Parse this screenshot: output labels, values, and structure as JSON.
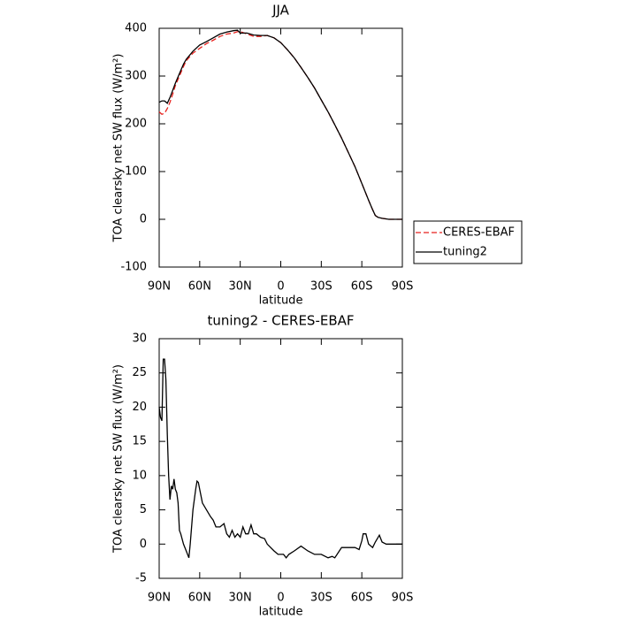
{
  "chart_data": [
    {
      "type": "line",
      "title": "JJA",
      "xlabel": "latitude",
      "ylabel": "TOA clearsky net SW flux (W/m²)",
      "x": [
        90,
        88,
        86,
        84,
        82,
        80,
        78,
        75,
        72,
        70,
        65,
        60,
        55,
        50,
        45,
        40,
        35,
        32,
        30,
        25,
        20,
        15,
        10,
        5,
        0,
        -5,
        -10,
        -15,
        -20,
        -25,
        -30,
        -35,
        -40,
        -45,
        -50,
        -55,
        -60,
        -65,
        -68,
        -70,
        -72,
        -75,
        -80,
        -85,
        -90
      ],
      "series": [
        {
          "name": "CERES-EBAF",
          "color": "#e8221e",
          "style": "dashed",
          "values": [
            225,
            220,
            222,
            232,
            245,
            262,
            280,
            300,
            320,
            332,
            348,
            358,
            368,
            375,
            383,
            388,
            390,
            393,
            393,
            388,
            383,
            383,
            385,
            380,
            370,
            355,
            338,
            318,
            297,
            275,
            250,
            225,
            198,
            170,
            140,
            110,
            75,
            40,
            20,
            8,
            4,
            2,
            0,
            0,
            0
          ]
        },
        {
          "name": "tuning2",
          "color": "#000000",
          "style": "solid",
          "values": [
            245,
            248,
            248,
            243,
            255,
            270,
            285,
            305,
            325,
            335,
            352,
            365,
            372,
            380,
            388,
            392,
            395,
            396,
            390,
            390,
            386,
            385,
            385,
            380,
            370,
            355,
            338,
            318,
            297,
            275,
            250,
            225,
            198,
            170,
            140,
            110,
            75,
            40,
            20,
            8,
            4,
            2,
            0,
            0,
            0
          ]
        }
      ],
      "xlim": [
        90,
        -90
      ],
      "xticks": [
        {
          "value": 90,
          "label": "90N"
        },
        {
          "value": 60,
          "label": "60N"
        },
        {
          "value": 30,
          "label": "30N"
        },
        0,
        {
          "value": -30,
          "label": "30S"
        },
        {
          "value": -60,
          "label": "60S"
        },
        {
          "value": -90,
          "label": "90S"
        }
      ],
      "ylim": [
        -100,
        400
      ],
      "yticks": [
        -100,
        0,
        100,
        200,
        300,
        400
      ],
      "legend": "outside right"
    },
    {
      "type": "line",
      "title": "tuning2 - CERES-EBAF",
      "xlabel": "latitude",
      "ylabel": "TOA clearsky net SW flux (W/m²)",
      "x": [
        90,
        89,
        88,
        87,
        86,
        85,
        84,
        83,
        82,
        81,
        80,
        79,
        78,
        77,
        76,
        75,
        74,
        72,
        70,
        68,
        67,
        65,
        63,
        62,
        61,
        60,
        58,
        55,
        52,
        50,
        48,
        45,
        42,
        40,
        38,
        36,
        34,
        32,
        30,
        28,
        26,
        24,
        22,
        20,
        18,
        15,
        12,
        10,
        5,
        2,
        0,
        -2,
        -4,
        -6,
        -10,
        -15,
        -20,
        -25,
        -30,
        -35,
        -38,
        -40,
        -45,
        -50,
        -55,
        -58,
        -60,
        -61,
        -63,
        -65,
        -68,
        -70,
        -73,
        -75,
        -78,
        -80,
        -90
      ],
      "series": [
        {
          "color": "#000000",
          "style": "solid",
          "values": [
            20,
            18.5,
            18,
            27,
            27,
            24,
            16,
            10,
            6.5,
            8.5,
            8,
            9.5,
            8,
            7.5,
            6,
            2,
            1.5,
            0,
            -1,
            -2,
            0,
            5,
            8,
            9.2,
            9,
            8,
            6,
            5,
            4,
            3.5,
            2.5,
            2.5,
            3,
            1.5,
            1,
            2,
            1,
            1.5,
            1,
            2.5,
            1.5,
            1.5,
            2.8,
            1.5,
            1.5,
            1,
            0.8,
            0,
            -1,
            -1.5,
            -1.5,
            -1.5,
            -2,
            -1.5,
            -1,
            -0.3,
            -1,
            -1.5,
            -1.5,
            -2,
            -1.8,
            -2,
            -0.5,
            -0.5,
            -0.5,
            -0.8,
            0.5,
            1.5,
            1.5,
            0,
            -0.5,
            0.3,
            1.3,
            0.3,
            0,
            0,
            0
          ]
        }
      ],
      "xlim": [
        90,
        -90
      ],
      "xticks": [
        {
          "value": 90,
          "label": "90N"
        },
        {
          "value": 60,
          "label": "60N"
        },
        {
          "value": 30,
          "label": "30N"
        },
        0,
        {
          "value": -30,
          "label": "30S"
        },
        {
          "value": -60,
          "label": "60S"
        },
        {
          "value": -90,
          "label": "90S"
        }
      ],
      "ylim": [
        -5,
        30
      ],
      "yticks": [
        -5,
        0,
        5,
        10,
        15,
        20,
        25,
        30
      ]
    }
  ]
}
